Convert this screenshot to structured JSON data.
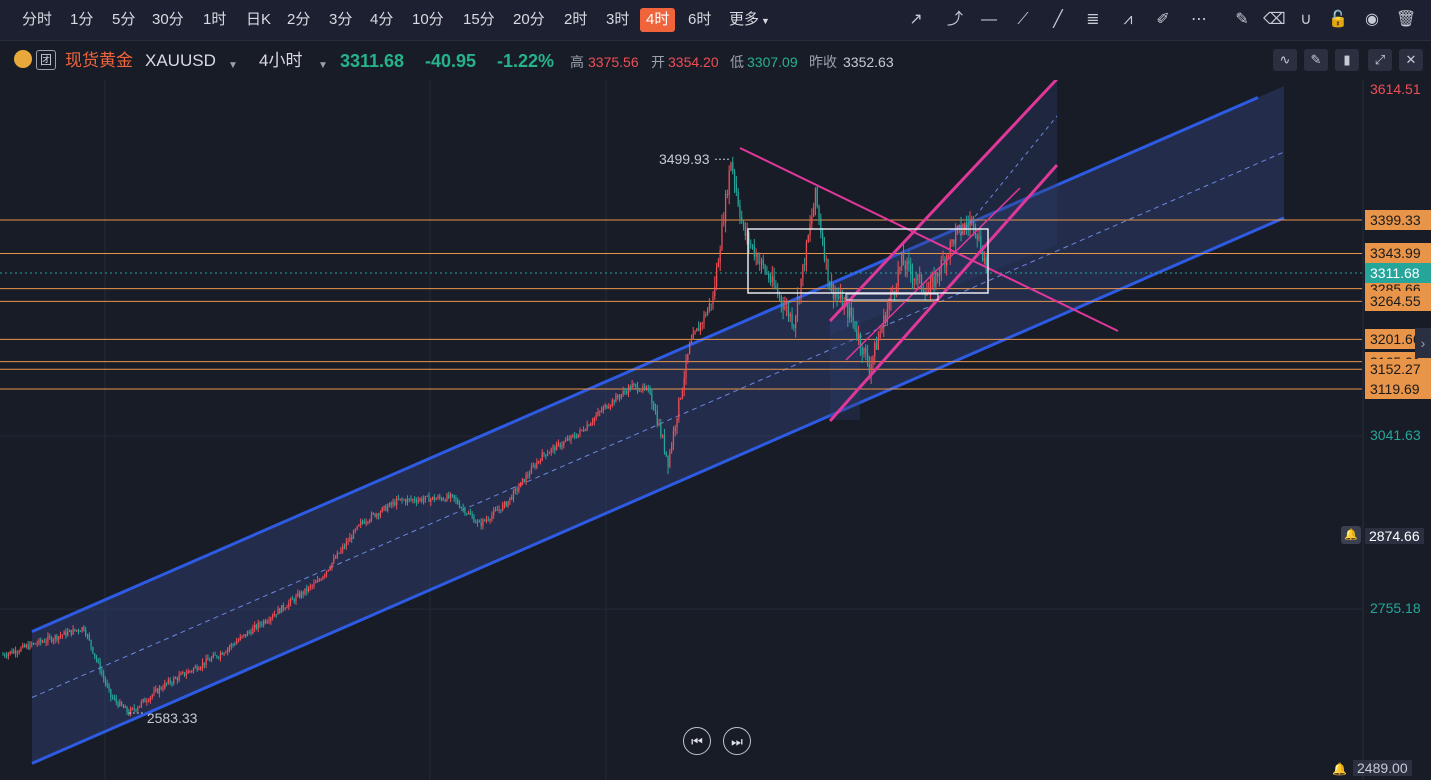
{
  "timeframes": [
    {
      "label": "分时"
    },
    {
      "label": "1分"
    },
    {
      "label": "5分"
    },
    {
      "label": "30分"
    },
    {
      "label": "1时"
    },
    {
      "label": "日K"
    },
    {
      "label": "2分"
    },
    {
      "label": "3分"
    },
    {
      "label": "4分"
    },
    {
      "label": "10分"
    },
    {
      "label": "15分"
    },
    {
      "label": "20分"
    },
    {
      "label": "2时"
    },
    {
      "label": "3时"
    },
    {
      "label": "4时"
    },
    {
      "label": "6时"
    },
    {
      "label": "更多"
    }
  ],
  "symbol": {
    "badge": "团",
    "name": "现货黄金",
    "code": "XAUUSD",
    "interval": "4小时",
    "last": "3311.68",
    "change": "-40.95",
    "change_pct": "-1.22%",
    "high_label": "高",
    "high": "3375.56",
    "open_label": "开",
    "open": "3354.20",
    "low_label": "低",
    "low": "3307.09",
    "prev_label": "昨收",
    "prev": "3352.63"
  },
  "colors": {
    "up": "#ef4e56",
    "down": "#26a69a",
    "channel": "#2d5be3",
    "pink": "#e0389a",
    "level": "#e8954a",
    "bg": "#181c27"
  },
  "chart_data": {
    "type": "candlestick",
    "y_axis_ticks": [
      "3614.51",
      "3041.63",
      "2874.66",
      "2755.18",
      "2489.00"
    ],
    "level_lines": [
      "3399.33",
      "3343.99",
      "3285.66",
      "3264.55",
      "3201.66",
      "3165.01",
      "3152.27",
      "3119.69"
    ],
    "current_price": "3311.68",
    "annotations": {
      "peak": "3499.93",
      "trough": "2583.33"
    },
    "price_anchors": [
      {
        "i": 0,
        "p": 2680
      },
      {
        "i": 45,
        "p": 2725
      },
      {
        "i": 60,
        "p": 2610
      },
      {
        "i": 70,
        "p": 2583.33
      },
      {
        "i": 90,
        "p": 2630
      },
      {
        "i": 120,
        "p": 2680
      },
      {
        "i": 145,
        "p": 2735
      },
      {
        "i": 175,
        "p": 2800
      },
      {
        "i": 200,
        "p": 2900
      },
      {
        "i": 220,
        "p": 2935
      },
      {
        "i": 250,
        "p": 2940
      },
      {
        "i": 265,
        "p": 2895
      },
      {
        "i": 280,
        "p": 2930
      },
      {
        "i": 300,
        "p": 3010
      },
      {
        "i": 320,
        "p": 3045
      },
      {
        "i": 335,
        "p": 3090
      },
      {
        "i": 350,
        "p": 3125
      },
      {
        "i": 360,
        "p": 3115
      },
      {
        "i": 370,
        "p": 3000
      },
      {
        "i": 382,
        "p": 3190
      },
      {
        "i": 395,
        "p": 3270
      },
      {
        "i": 405,
        "p": 3499.93
      },
      {
        "i": 412,
        "p": 3380
      },
      {
        "i": 425,
        "p": 3310
      },
      {
        "i": 440,
        "p": 3230
      },
      {
        "i": 452,
        "p": 3440
      },
      {
        "i": 460,
        "p": 3290
      },
      {
        "i": 472,
        "p": 3240
      },
      {
        "i": 482,
        "p": 3155
      },
      {
        "i": 500,
        "p": 3330
      },
      {
        "i": 515,
        "p": 3280
      },
      {
        "i": 530,
        "p": 3375
      },
      {
        "i": 540,
        "p": 3400
      },
      {
        "i": 548,
        "p": 3311.68
      }
    ]
  },
  "axis": {
    "bottom_price": "2489.00"
  }
}
